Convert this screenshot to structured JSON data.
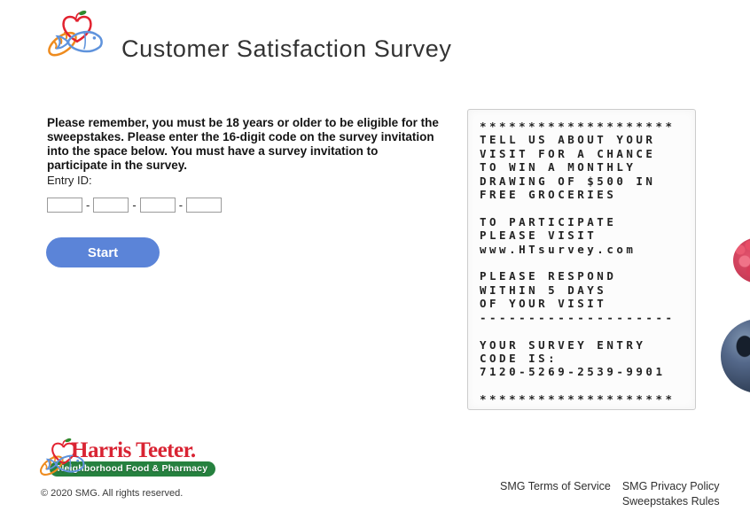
{
  "header": {
    "title": "Customer Satisfaction Survey"
  },
  "main": {
    "instructions": "Please remember, you must be 18 years or older to be eligible for the sweepstakes. Please enter the 16-digit code on the survey invitation into the space below. You must have a survey invitation to participate in the survey.",
    "entry_form": {
      "label": "Entry ID:",
      "separator": "-",
      "segment_values": [
        "",
        "",
        "",
        ""
      ],
      "start_button_label": "Start"
    },
    "receipt": {
      "lines": [
        "********************",
        "TELL US ABOUT YOUR",
        "VISIT FOR A CHANCE",
        "TO WIN A MONTHLY",
        "DRAWING OF $500 IN",
        "FREE GROCERIES",
        "",
        "TO PARTICIPATE",
        "PLEASE VISIT",
        "www.HTsurvey.com",
        "",
        "PLEASE RESPOND",
        "WITHIN 5 DAYS",
        "OF YOUR VISIT",
        "--------------------",
        "",
        "YOUR SURVEY ENTRY",
        "CODE IS:",
        "7120-5269-2539-9901",
        "",
        "********************"
      ]
    }
  },
  "footer": {
    "brand": {
      "name": "Harris Teeter.",
      "tagline": "Neighborhood Food & Pharmacy"
    },
    "copyright": "© 2020 SMG. All rights reserved.",
    "links": {
      "terms": "SMG Terms of Service",
      "privacy": "SMG Privacy Policy",
      "sweepstakes": "Sweepstakes Rules"
    }
  },
  "colors": {
    "button_blue": "#5b84d8",
    "brand_red": "#d92433",
    "brand_green": "#26813f",
    "receipt_text": "#232323"
  }
}
